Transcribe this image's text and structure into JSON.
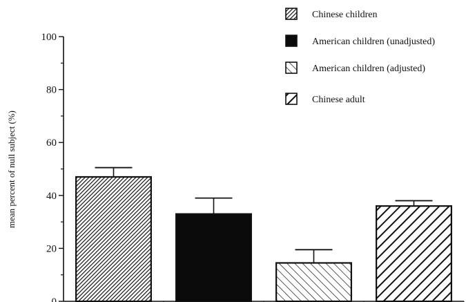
{
  "chart_data": {
    "type": "bar",
    "title": "",
    "xlabel": "",
    "ylabel": "mean percent of null subject (%)",
    "ylim": [
      0,
      100
    ],
    "yticks": [
      0,
      20,
      40,
      60,
      80,
      100
    ],
    "yminor": [
      10,
      30,
      50,
      70,
      90
    ],
    "grid": false,
    "legend_position": "top-right",
    "categories": [
      "Chinese children",
      "American children (unadjusted)",
      "American children (adjusted)",
      "Chinese adult"
    ],
    "values": [
      47,
      33,
      14.5,
      36
    ],
    "error": [
      3.5,
      6,
      5,
      2
    ],
    "legend": [
      {
        "label": "Chinese children",
        "fill": "dense-diagonal"
      },
      {
        "label": "American children (unadjusted)",
        "fill": "solid"
      },
      {
        "label": "American children (adjusted)",
        "fill": "sparse-backslash"
      },
      {
        "label": "Chinese adult",
        "fill": "bold-diagonal"
      }
    ],
    "colors": {
      "ink": "#111111",
      "background": "#ffffff"
    }
  }
}
